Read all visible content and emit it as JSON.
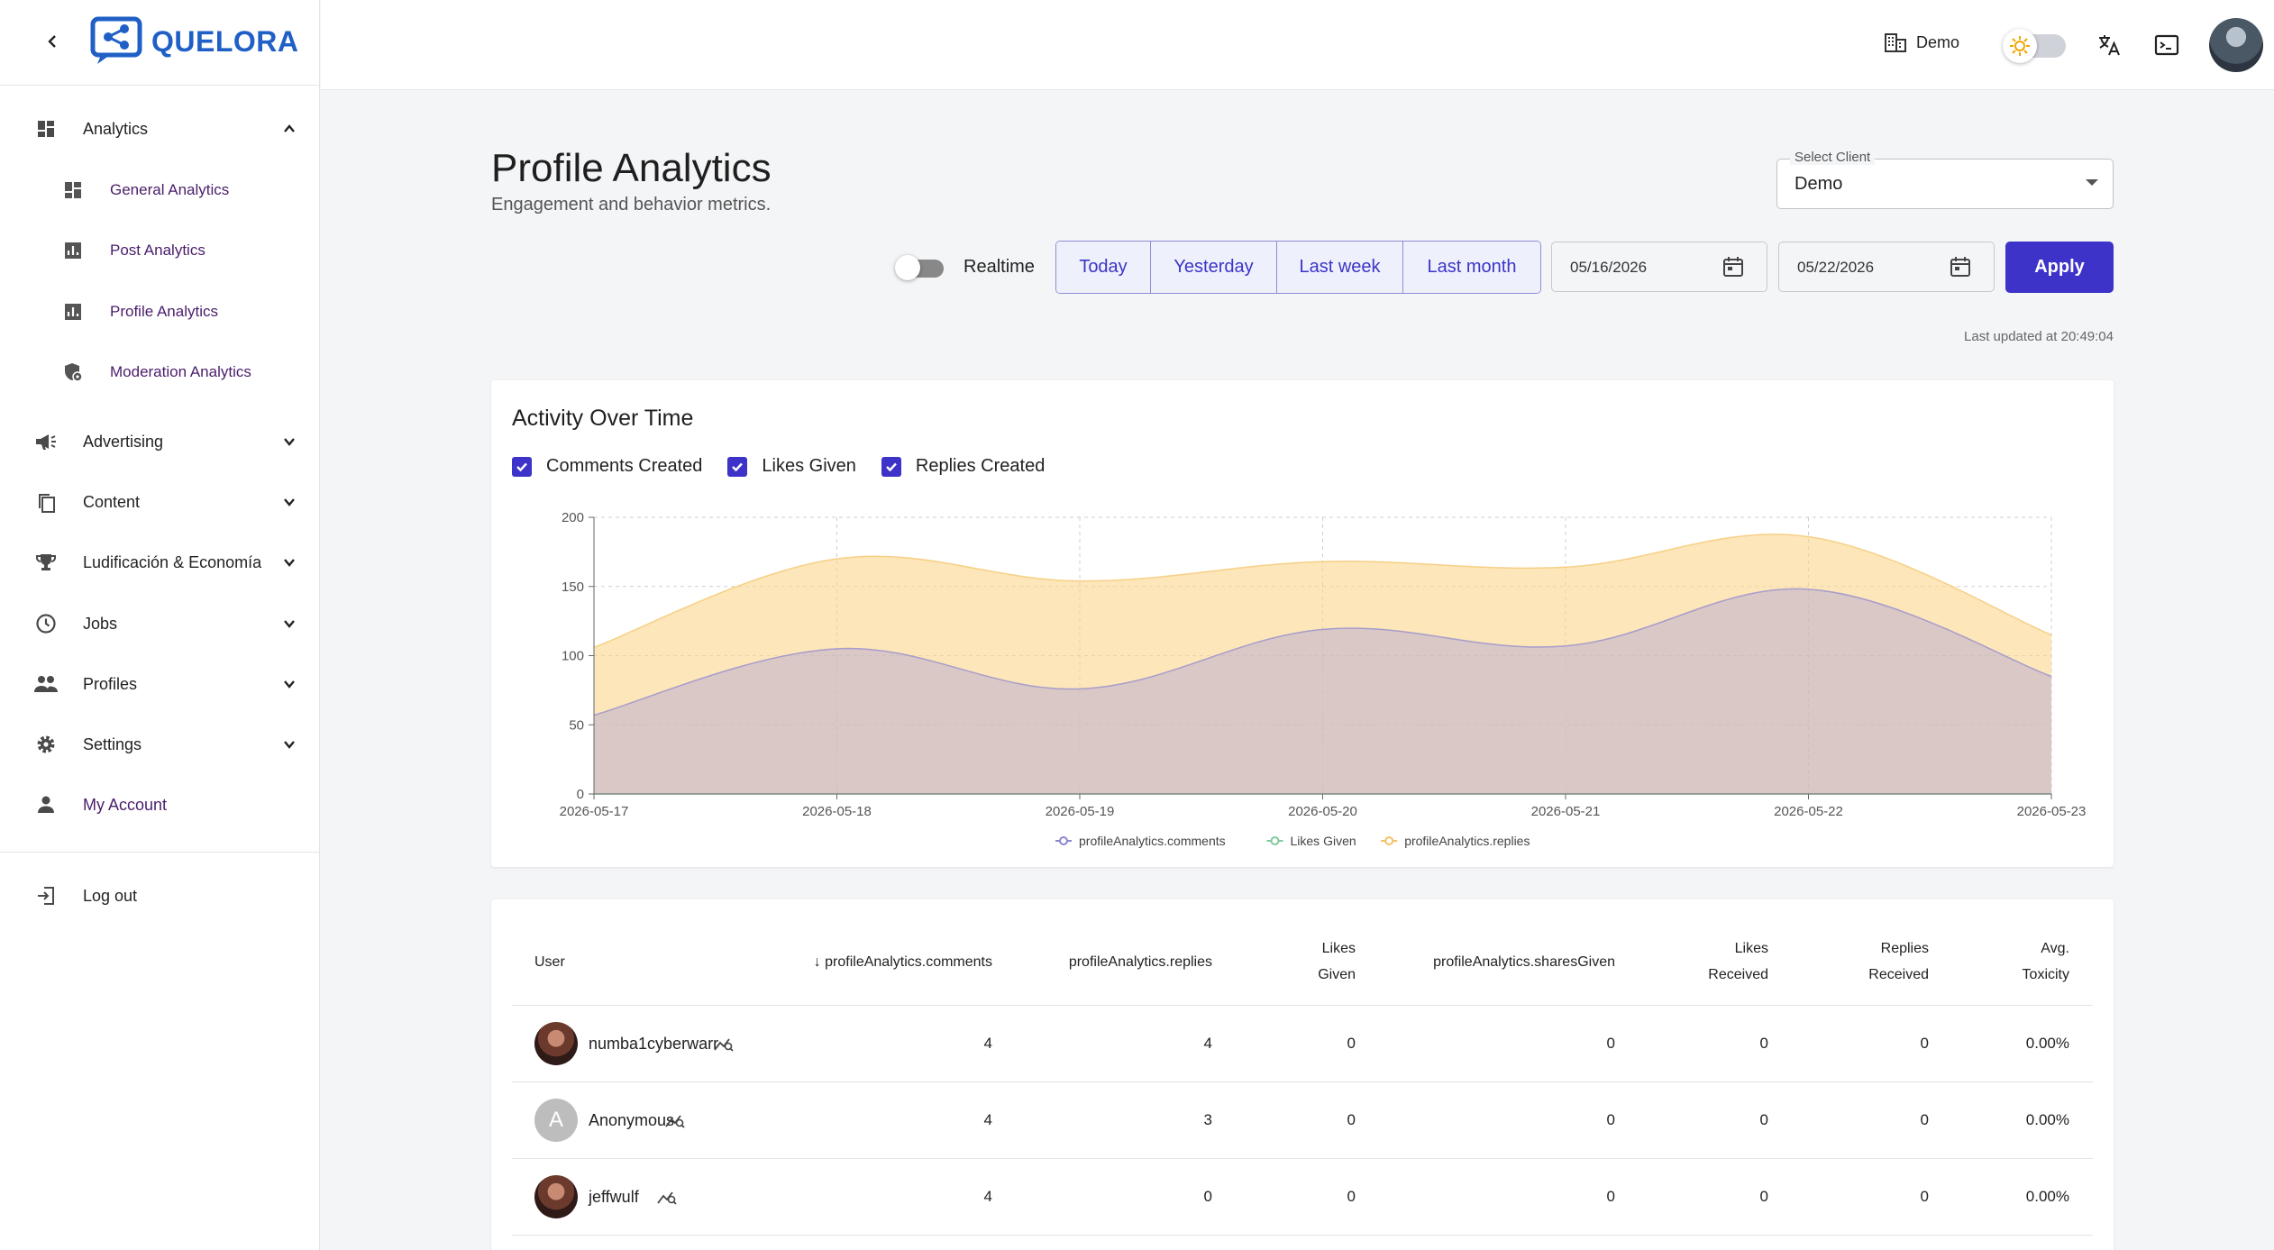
{
  "brand": {
    "name": "QUELORA"
  },
  "sidebar": {
    "items": [
      {
        "label": "Analytics",
        "icon": "dashboard-icon",
        "expanded": true
      },
      {
        "label": "General Analytics",
        "icon": "dashboard-icon",
        "sub": true
      },
      {
        "label": "Post Analytics",
        "icon": "bar-chart-icon",
        "sub": true
      },
      {
        "label": "Profile Analytics",
        "icon": "bar-chart-icon",
        "sub": true,
        "active": true
      },
      {
        "label": "Moderation Analytics",
        "icon": "shield-gear-icon",
        "sub": true
      },
      {
        "label": "Advertising",
        "icon": "megaphone-icon"
      },
      {
        "label": "Content",
        "icon": "copy-icon"
      },
      {
        "label": "Ludificación & Economía",
        "icon": "trophy-icon"
      },
      {
        "label": "Jobs",
        "icon": "clock-icon"
      },
      {
        "label": "Profiles",
        "icon": "people-icon"
      },
      {
        "label": "Settings",
        "icon": "gear-icon"
      },
      {
        "label": "My Account",
        "icon": "person-icon"
      }
    ],
    "logout": "Log out"
  },
  "topbar": {
    "tenant": "Demo"
  },
  "page": {
    "title": "Profile Analytics",
    "subtitle": "Engagement and behavior metrics.",
    "select_client": {
      "label": "Select Client",
      "value": "Demo"
    },
    "realtime_label": "Realtime",
    "ranges": [
      "Today",
      "Yesterday",
      "Last week",
      "Last month"
    ],
    "date_from": "05/16/2026",
    "date_to": "05/22/2026",
    "apply": "Apply",
    "last_updated": "Last updated at 20:49:04"
  },
  "chart_card": {
    "title": "Activity Over Time",
    "checkboxes": [
      "Comments Created",
      "Likes Given",
      "Replies Created"
    ]
  },
  "chart_data": {
    "type": "area",
    "x": [
      "2026-05-17",
      "2026-05-18",
      "2026-05-19",
      "2026-05-20",
      "2026-05-21",
      "2026-05-22",
      "2026-05-23"
    ],
    "ylim": [
      0,
      200
    ],
    "yticks": [
      0,
      50,
      100,
      150,
      200
    ],
    "grid": true,
    "legend_position": "bottom",
    "series": [
      {
        "name": "profileAnalytics.comments",
        "values": [
          57,
          105,
          76,
          119,
          107,
          148,
          85
        ],
        "color": "#8c85cf"
      },
      {
        "name": "Likes Given",
        "values": [
          0,
          0,
          0,
          0,
          0,
          0,
          0
        ],
        "color": "#82ca9d"
      },
      {
        "name": "profileAnalytics.replies",
        "values": [
          106,
          170,
          154,
          168,
          164,
          186,
          115
        ],
        "color": "#f4c264"
      }
    ]
  },
  "table": {
    "columns": [
      "User",
      "profileAnalytics.comments",
      "profileAnalytics.replies",
      "Likes Given",
      "profileAnalytics.sharesGiven",
      "Likes Received",
      "Replies Received",
      "Avg. Toxicity"
    ],
    "rows": [
      {
        "user": "numba1cyberwarr",
        "avatar": "photo",
        "comments": "4",
        "replies": "4",
        "likes_given": "0",
        "shares_given": "0",
        "likes_received": "0",
        "replies_received": "0",
        "toxicity": "0.00%"
      },
      {
        "user": "Anonymous",
        "avatar": "A",
        "comments": "4",
        "replies": "3",
        "likes_given": "0",
        "shares_given": "0",
        "likes_received": "0",
        "replies_received": "0",
        "toxicity": "0.00%"
      },
      {
        "user": "jeffwulf",
        "avatar": "photo",
        "comments": "4",
        "replies": "0",
        "likes_given": "0",
        "shares_given": "0",
        "likes_received": "0",
        "replies_received": "0",
        "toxicity": "0.00%"
      }
    ]
  },
  "colors": {
    "accent": "#3d33c9",
    "brand": "#1f5fc6",
    "nav_sub": "#4a1d6b"
  }
}
